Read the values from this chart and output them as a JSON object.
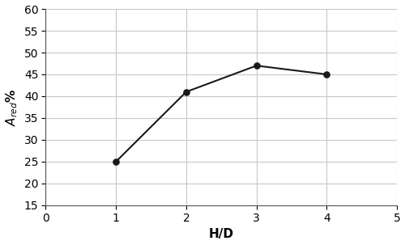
{
  "x": [
    1,
    2,
    3,
    4
  ],
  "y": [
    25,
    41,
    47,
    45
  ],
  "xlabel": "H/D",
  "ylabel": "$A_{red}$%",
  "xlim": [
    0,
    5
  ],
  "ylim": [
    15,
    60
  ],
  "xticks": [
    0,
    1,
    2,
    3,
    4,
    5
  ],
  "yticks": [
    15,
    20,
    25,
    30,
    35,
    40,
    45,
    50,
    55,
    60
  ],
  "line_color": "#1a1a1a",
  "marker": "o",
  "marker_size": 5,
  "marker_facecolor": "#1a1a1a",
  "linewidth": 1.5,
  "grid_color": "#c8c8c8",
  "background_color": "#ffffff",
  "xlabel_fontsize": 11,
  "ylabel_fontsize": 11,
  "tick_fontsize": 10
}
